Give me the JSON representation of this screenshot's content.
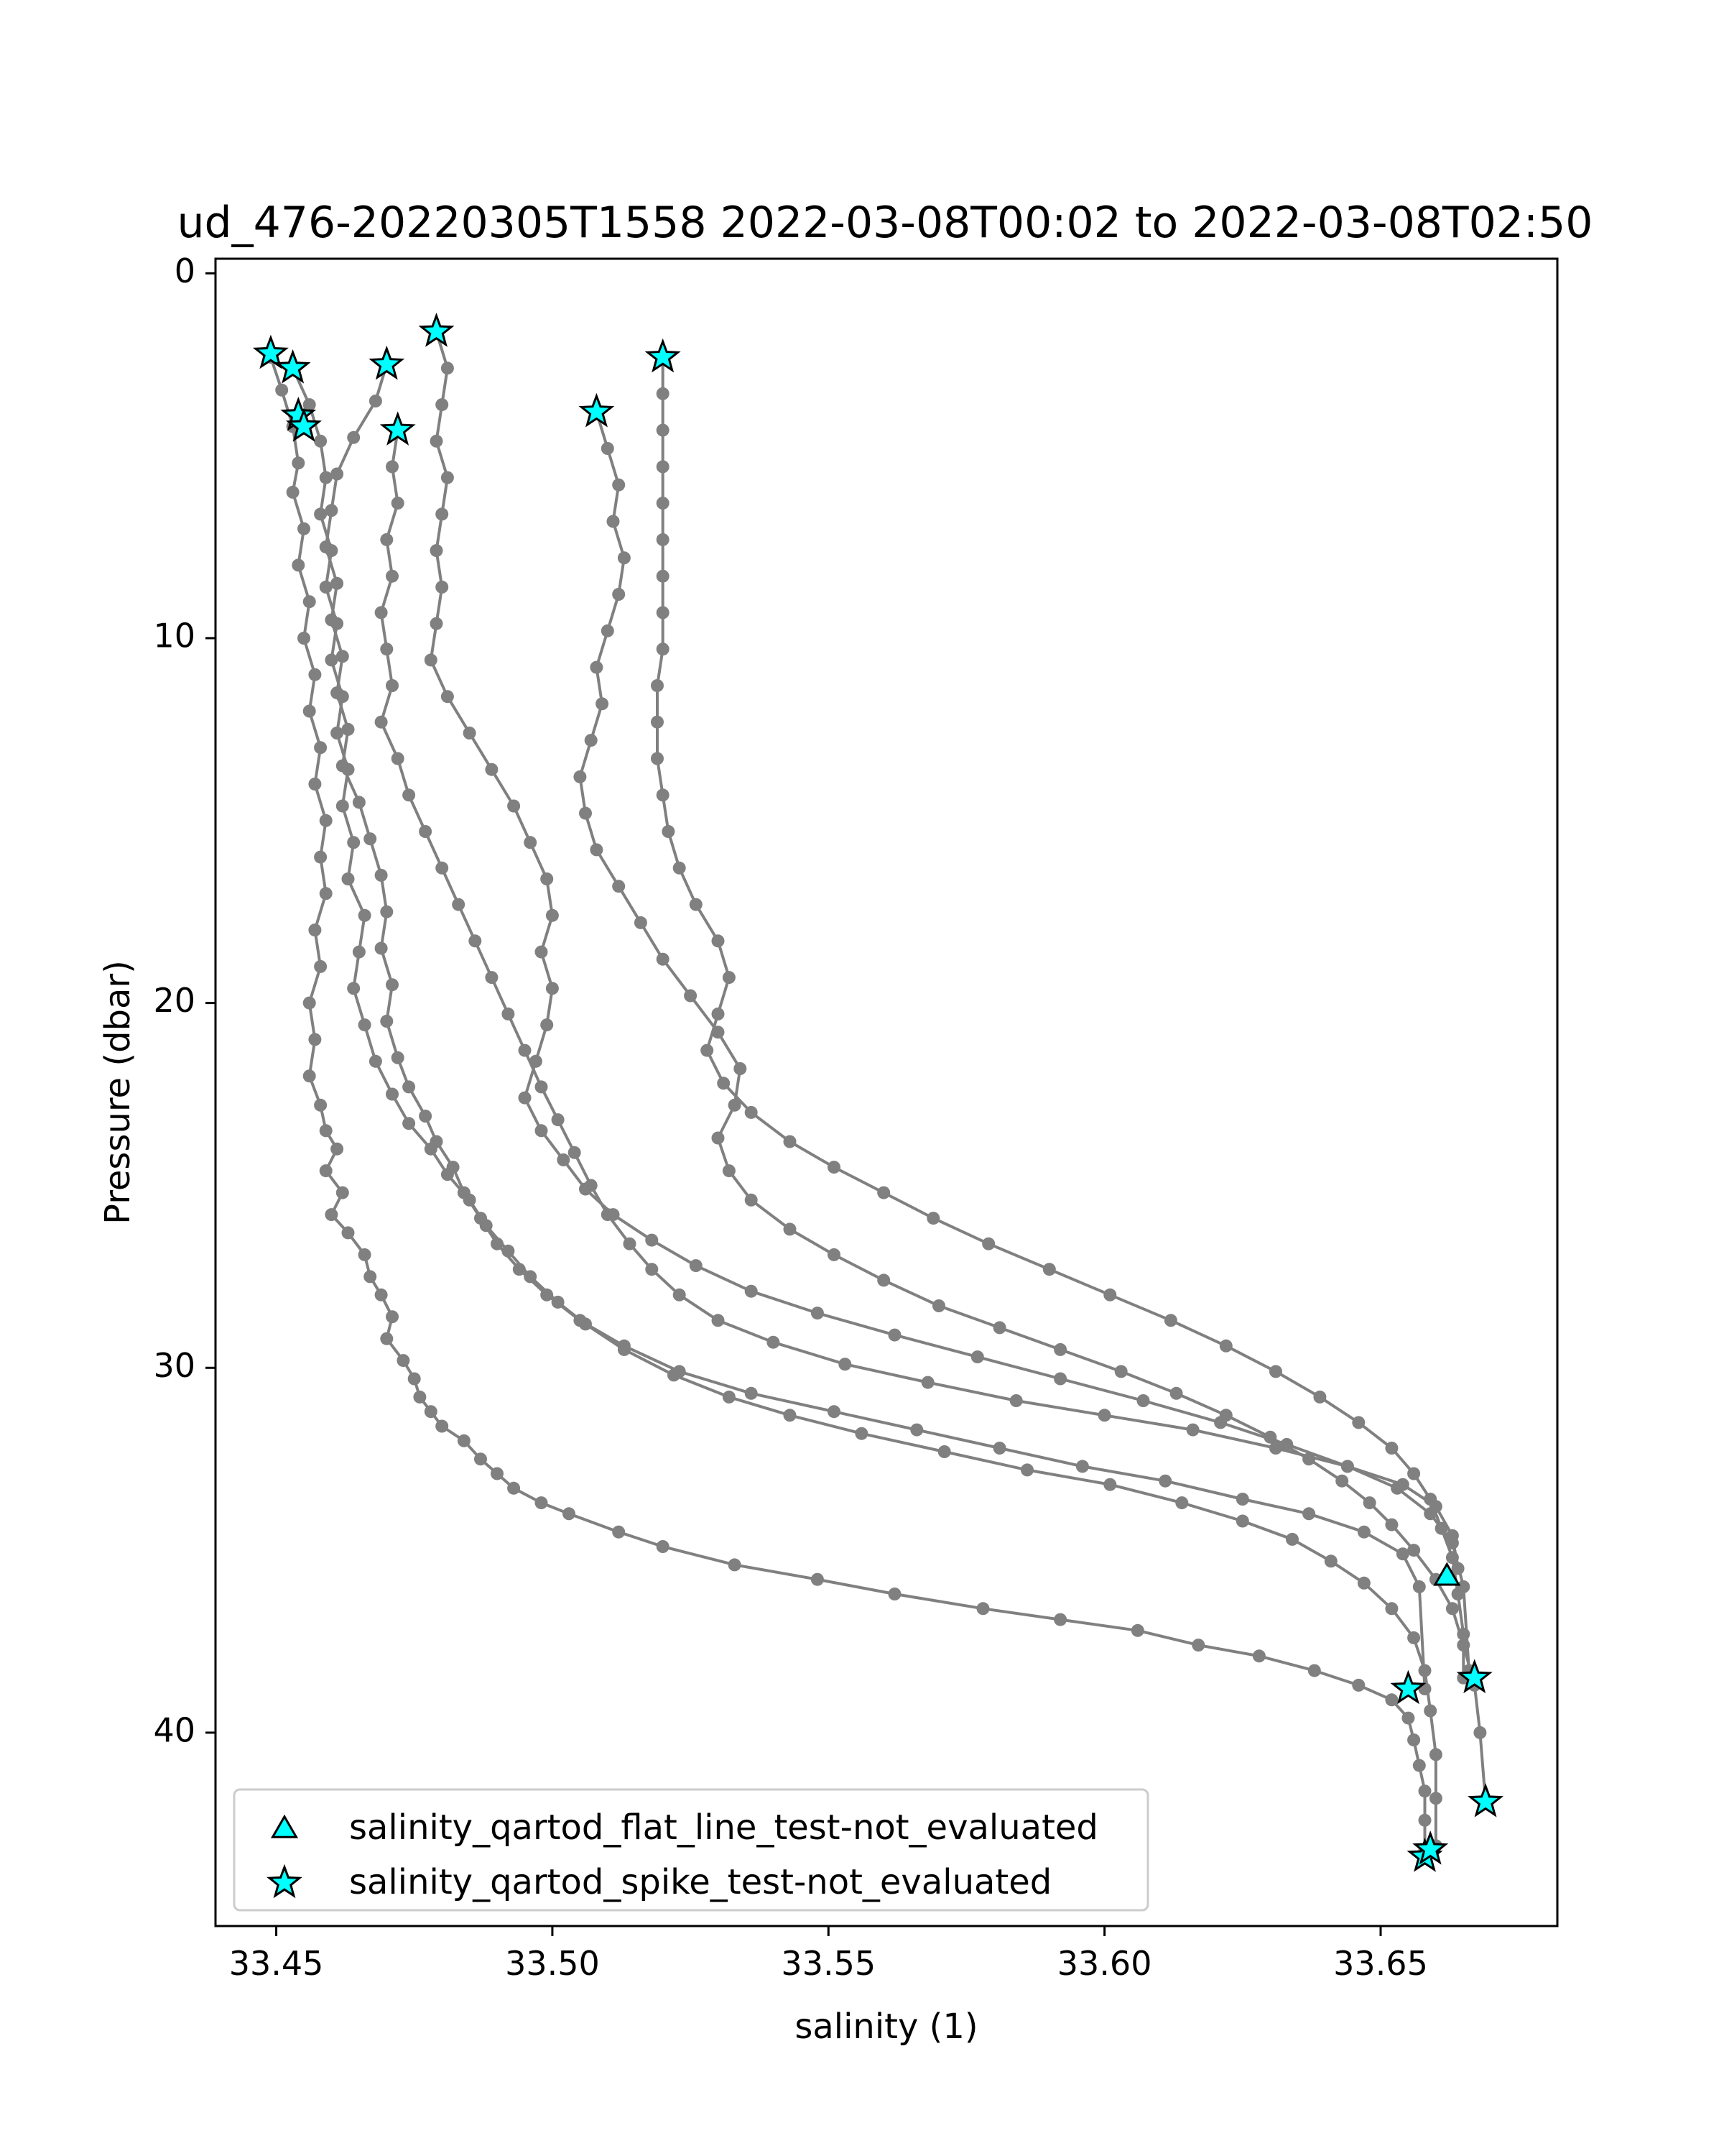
{
  "chart_data": {
    "type": "scatter",
    "title": "ud_476-20220305T1558 2022-03-08T00:02 to 2022-03-08T02:50",
    "xlabel": "salinity (1)",
    "ylabel": "Pressure (dbar)",
    "xlim": [
      33.439,
      33.682
    ],
    "ylim": [
      45.3,
      -0.4
    ],
    "y_inverted": true,
    "x_ticks": [
      33.45,
      33.5,
      33.55,
      33.6,
      33.65
    ],
    "x_tick_labels": [
      "33.45",
      "33.50",
      "33.55",
      "33.60",
      "33.65"
    ],
    "y_ticks": [
      0,
      10,
      20,
      30,
      40
    ],
    "y_tick_labels": [
      "0",
      "10",
      "20",
      "30",
      "40"
    ],
    "grid": false,
    "legend_position": "lower-left",
    "colors": {
      "profile": "#808080",
      "flag_fill": "#00ffff",
      "flag_edge": "#000000"
    },
    "profiles": [
      {
        "x": [
          33.449,
          33.451,
          33.453,
          33.454,
          33.453,
          33.455,
          33.454,
          33.456,
          33.455,
          33.457,
          33.456,
          33.458,
          33.457,
          33.459,
          33.458,
          33.459,
          33.457,
          33.458,
          33.456,
          33.457,
          33.456,
          33.458,
          33.459,
          33.461,
          33.459,
          33.462,
          33.46,
          33.463,
          33.466,
          33.467,
          33.469,
          33.471,
          33.47,
          33.473,
          33.475,
          33.476,
          33.478,
          33.48,
          33.484,
          33.487,
          33.49,
          33.493,
          33.498,
          33.503,
          33.512,
          33.52,
          33.533,
          33.548,
          33.562,
          33.578,
          33.592,
          33.606,
          33.617,
          33.628,
          33.638,
          33.646,
          33.652,
          33.655,
          33.656,
          33.657,
          33.658,
          33.658,
          33.658
        ],
        "y": [
          2.3,
          3.2,
          4.2,
          5.2,
          6.0,
          7.0,
          8.0,
          9.0,
          10.0,
          11.0,
          12.0,
          13.0,
          14.0,
          15.0,
          16.0,
          17.0,
          18.0,
          19.0,
          20.0,
          21.0,
          22.0,
          22.8,
          23.5,
          24.0,
          24.6,
          25.2,
          25.8,
          26.3,
          26.9,
          27.5,
          28.0,
          28.6,
          29.2,
          29.8,
          30.3,
          30.8,
          31.2,
          31.6,
          32.0,
          32.5,
          32.9,
          33.3,
          33.7,
          34.0,
          34.5,
          34.9,
          35.4,
          35.8,
          36.2,
          36.6,
          36.9,
          37.2,
          37.6,
          37.9,
          38.3,
          38.7,
          39.1,
          39.6,
          40.2,
          40.9,
          41.6,
          42.4,
          43.2
        ]
      },
      {
        "x": [
          33.453,
          33.456,
          33.458,
          33.459,
          33.458,
          33.46,
          33.459,
          33.461,
          33.46,
          33.462,
          33.461,
          33.463,
          33.462,
          33.464,
          33.463,
          33.466,
          33.465,
          33.464,
          33.466,
          33.468,
          33.471,
          33.474,
          33.478,
          33.481,
          33.485,
          33.488,
          33.492,
          33.496,
          33.501,
          33.506,
          33.513,
          33.522,
          33.532,
          33.543,
          33.556,
          33.571,
          33.586,
          33.601,
          33.614,
          33.625,
          33.634,
          33.641,
          33.647,
          33.652,
          33.656,
          33.658,
          33.659,
          33.66,
          33.66,
          33.66
        ],
        "y": [
          2.6,
          3.6,
          4.6,
          5.6,
          6.6,
          7.6,
          8.6,
          9.6,
          10.6,
          11.6,
          12.6,
          13.6,
          14.6,
          15.6,
          16.6,
          17.6,
          18.6,
          19.6,
          20.6,
          21.6,
          22.5,
          23.3,
          24.0,
          24.7,
          25.4,
          26.1,
          26.8,
          27.5,
          28.2,
          28.8,
          29.5,
          30.2,
          30.8,
          31.3,
          31.8,
          32.3,
          32.8,
          33.2,
          33.7,
          34.2,
          34.7,
          35.3,
          35.9,
          36.6,
          37.4,
          38.3,
          39.4,
          40.6,
          41.8,
          43.1
        ]
      },
      {
        "x": [
          33.47,
          33.468,
          33.464,
          33.461,
          33.46,
          33.459,
          33.461,
          33.46,
          33.462,
          33.461,
          33.463,
          33.462,
          33.465,
          33.467,
          33.469,
          33.47,
          33.469,
          33.471,
          33.47,
          33.472,
          33.474,
          33.477,
          33.479,
          33.482,
          33.484,
          33.487,
          33.49,
          33.494,
          33.499,
          33.505,
          33.513,
          33.523,
          33.536,
          33.551,
          33.566,
          33.581,
          33.596,
          33.611,
          33.625,
          33.637,
          33.647,
          33.654,
          33.657,
          33.658
        ],
        "y": [
          2.5,
          3.5,
          4.5,
          5.5,
          6.5,
          7.5,
          8.5,
          9.5,
          10.5,
          11.5,
          12.5,
          13.5,
          14.5,
          15.5,
          16.5,
          17.5,
          18.5,
          19.5,
          20.5,
          21.5,
          22.3,
          23.1,
          23.8,
          24.5,
          25.2,
          25.9,
          26.6,
          27.3,
          28.0,
          28.7,
          29.4,
          30.1,
          30.7,
          31.2,
          31.7,
          32.2,
          32.7,
          33.1,
          33.6,
          34.0,
          34.5,
          35.1,
          36.0,
          38.8
        ]
      },
      {
        "x": [
          33.472,
          33.471,
          33.472,
          33.47,
          33.471,
          33.469,
          33.47,
          33.471,
          33.469,
          33.472,
          33.474,
          33.477,
          33.48,
          33.483,
          33.486,
          33.489,
          33.492,
          33.495,
          33.498,
          33.501,
          33.504,
          33.507,
          33.51,
          33.514,
          33.518,
          33.523,
          33.53,
          33.54,
          33.553,
          33.568,
          33.584,
          33.6,
          33.616,
          33.631,
          33.644,
          33.654,
          33.66,
          33.663,
          33.664
        ],
        "y": [
          4.3,
          5.3,
          6.3,
          7.3,
          8.3,
          9.3,
          10.3,
          11.3,
          12.3,
          13.3,
          14.3,
          15.3,
          16.3,
          17.3,
          18.3,
          19.3,
          20.3,
          21.3,
          22.3,
          23.2,
          24.1,
          25.0,
          25.8,
          26.6,
          27.3,
          28.0,
          28.7,
          29.3,
          29.9,
          30.4,
          30.9,
          31.3,
          31.7,
          32.2,
          32.7,
          33.2,
          33.8,
          34.6,
          35.5
        ]
      },
      {
        "x": [
          33.479,
          33.481,
          33.48,
          33.479,
          33.481,
          33.48,
          33.479,
          33.48,
          33.479,
          33.478,
          33.481,
          33.485,
          33.489,
          33.493,
          33.496,
          33.499,
          33.5,
          33.498,
          33.5,
          33.499,
          33.497,
          33.495,
          33.498,
          33.502,
          33.506,
          33.511,
          33.518,
          33.526,
          33.536,
          33.548,
          33.562,
          33.577,
          33.592,
          33.607,
          33.621,
          33.633,
          33.644,
          33.653,
          33.659,
          33.663,
          33.665,
          33.666
        ],
        "y": [
          1.6,
          2.6,
          3.6,
          4.6,
          5.6,
          6.6,
          7.6,
          8.6,
          9.6,
          10.6,
          11.6,
          12.6,
          13.6,
          14.6,
          15.6,
          16.6,
          17.6,
          18.6,
          19.6,
          20.6,
          21.6,
          22.6,
          23.5,
          24.3,
          25.1,
          25.8,
          26.5,
          27.2,
          27.9,
          28.5,
          29.1,
          29.7,
          30.3,
          30.9,
          31.5,
          32.1,
          32.7,
          33.3,
          34.0,
          34.8,
          36.0,
          38.3
        ]
      },
      {
        "x": [
          33.508,
          33.51,
          33.512,
          33.511,
          33.513,
          33.512,
          33.51,
          33.508,
          33.509,
          33.507,
          33.505,
          33.506,
          33.508,
          33.512,
          33.516,
          33.52,
          33.525,
          33.53,
          33.534,
          33.533,
          33.53,
          33.532,
          33.536,
          33.543,
          33.551,
          33.56,
          33.57,
          33.581,
          33.592,
          33.603,
          33.613,
          33.622,
          33.63,
          33.637,
          33.643,
          33.648,
          33.652,
          33.656,
          33.66,
          33.663,
          33.665,
          33.667,
          33.668,
          33.669
        ],
        "y": [
          3.8,
          4.8,
          5.8,
          6.8,
          7.8,
          8.8,
          9.8,
          10.8,
          11.8,
          12.8,
          13.8,
          14.8,
          15.8,
          16.8,
          17.8,
          18.8,
          19.8,
          20.8,
          21.8,
          22.8,
          23.7,
          24.6,
          25.4,
          26.2,
          26.9,
          27.6,
          28.3,
          28.9,
          29.5,
          30.1,
          30.7,
          31.3,
          31.9,
          32.5,
          33.1,
          33.7,
          34.3,
          35.0,
          35.8,
          36.6,
          37.6,
          38.7,
          40.0,
          41.9
        ]
      },
      {
        "x": [
          33.52,
          33.52,
          33.52,
          33.52,
          33.52,
          33.52,
          33.52,
          33.52,
          33.52,
          33.519,
          33.519,
          33.519,
          33.52,
          33.521,
          33.523,
          33.526,
          33.53,
          33.532,
          33.53,
          33.528,
          33.531,
          33.536,
          33.543,
          33.551,
          33.56,
          33.569,
          33.579,
          33.59,
          33.601,
          33.612,
          33.622,
          33.631,
          33.639,
          33.646,
          33.652,
          33.656,
          33.659,
          33.661,
          33.663,
          33.664,
          33.665,
          33.665
        ],
        "y": [
          2.3,
          3.3,
          4.3,
          5.3,
          6.3,
          7.3,
          8.3,
          9.3,
          10.3,
          11.3,
          12.3,
          13.3,
          14.3,
          15.3,
          16.3,
          17.3,
          18.3,
          19.3,
          20.3,
          21.3,
          22.2,
          23.0,
          23.8,
          24.5,
          25.2,
          25.9,
          26.6,
          27.3,
          28.0,
          28.7,
          29.4,
          30.1,
          30.8,
          31.5,
          32.2,
          32.9,
          33.6,
          34.4,
          35.2,
          36.2,
          37.3,
          38.5
        ]
      }
    ],
    "series": [
      {
        "name": "salinity_qartod_flat_line_test-not_evaluated",
        "marker": "triangle",
        "x": [
          33.662
        ],
        "y": [
          35.7
        ]
      },
      {
        "name": "salinity_qartod_spike_test-not_evaluated",
        "marker": "star",
        "x": [
          33.449,
          33.453,
          33.454,
          33.455,
          33.47,
          33.472,
          33.479,
          33.508,
          33.52,
          33.655,
          33.658,
          33.659,
          33.667,
          33.669
        ],
        "y": [
          2.2,
          2.6,
          3.9,
          4.2,
          2.5,
          4.3,
          1.6,
          3.8,
          2.3,
          38.8,
          43.4,
          43.2,
          38.5,
          41.9
        ]
      }
    ]
  }
}
